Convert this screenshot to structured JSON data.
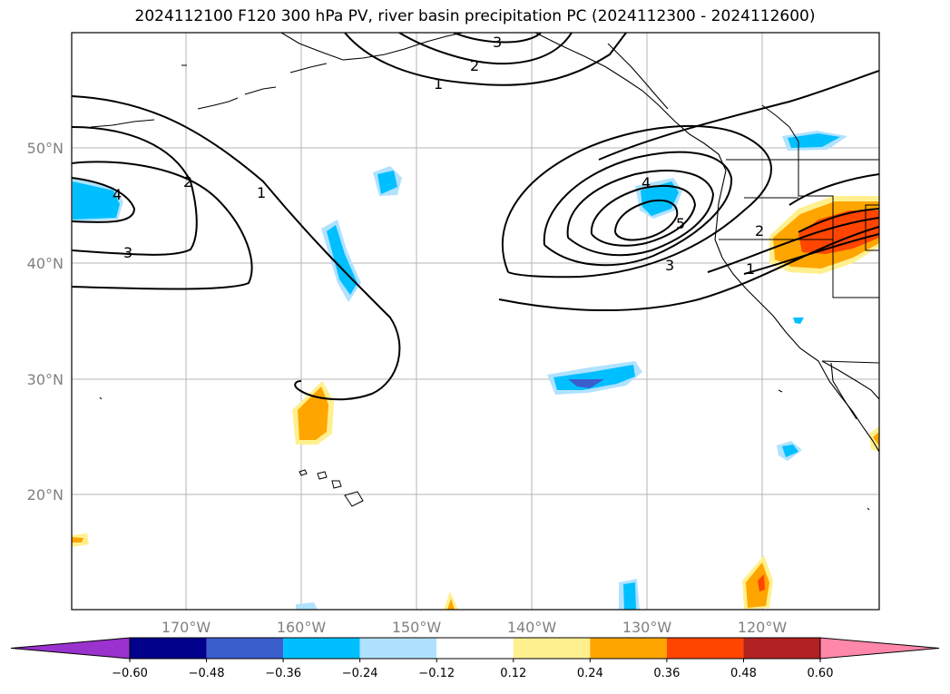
{
  "title": "2024112100 F120 300 hPa PV, river basin precipitation PC (2024112300 - 2024112600)",
  "lat_labels": [
    "50°N",
    "40°N",
    "30°N",
    "20°N"
  ],
  "lon_labels": [
    "170°W",
    "160°W",
    "150°W",
    "140°W",
    "130°W",
    "120°W"
  ],
  "contour_labels": {
    "c1_top": "3",
    "c2_top": "2",
    "c3_top": "1",
    "left_2": "2",
    "left_1": "1",
    "left_4": "4",
    "left_3": "3",
    "right_4": "4",
    "right_5": "5",
    "right_3": "3",
    "right_2": "2",
    "right_1": "1"
  },
  "colorbar": {
    "colors": [
      "#9a32cd",
      "#00008b",
      "#3a5fcd",
      "#00bfff",
      "#b0e2ff",
      "#ffffff",
      "#fff08f",
      "#ffa500",
      "#ff4500",
      "#b22222",
      "#ff88aa"
    ],
    "tick_labels": [
      "−0.60",
      "−0.48",
      "−0.36",
      "−0.24",
      "−0.12",
      "0.12",
      "0.24",
      "0.36",
      "0.48",
      "0.60"
    ]
  },
  "gridlines": true
}
